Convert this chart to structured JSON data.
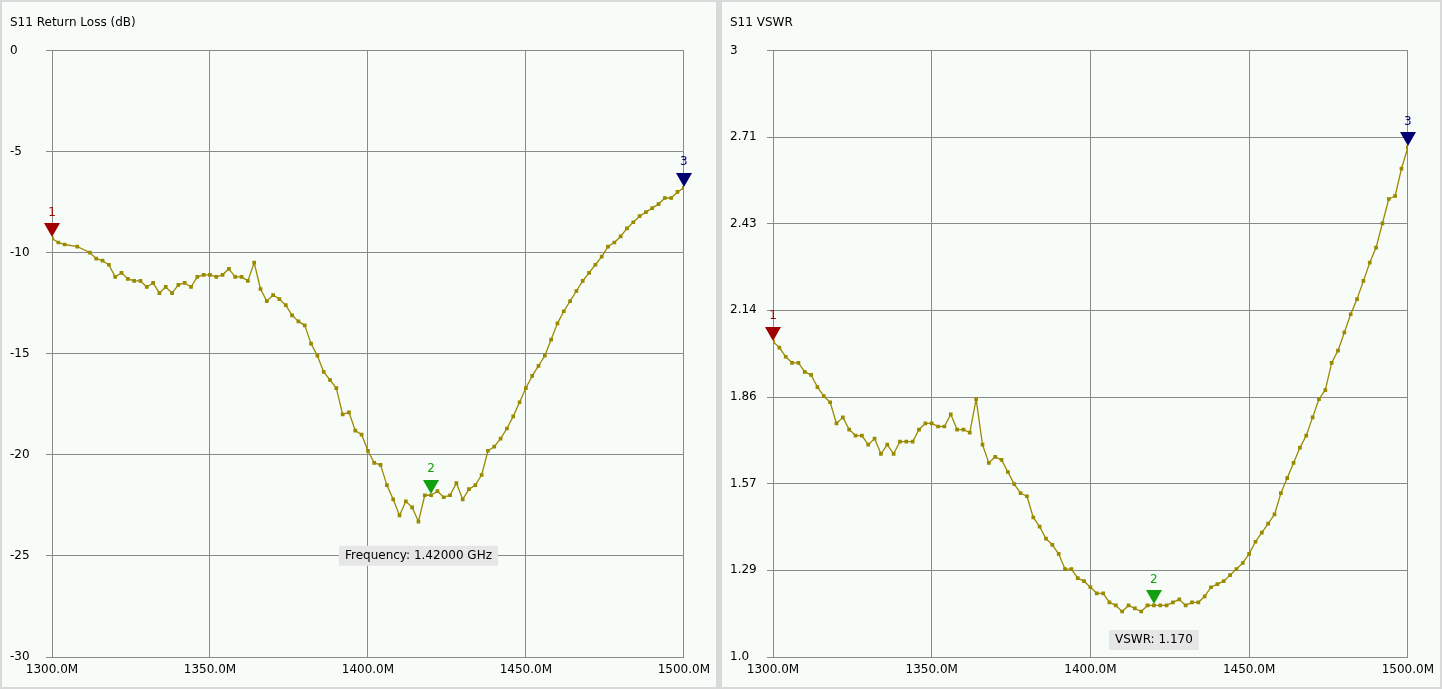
{
  "chart_data": [
    {
      "type": "line",
      "title": "S11 Return Loss (dB)",
      "x": [
        1300,
        1302,
        1304,
        1308,
        1312,
        1314,
        1316,
        1318,
        1320,
        1322,
        1324,
        1326,
        1328,
        1330,
        1332,
        1334,
        1336,
        1338,
        1340,
        1342,
        1344,
        1346,
        1348,
        1350,
        1352,
        1354,
        1356,
        1358,
        1360,
        1362,
        1364,
        1366,
        1368,
        1370,
        1372,
        1374,
        1376,
        1378,
        1380,
        1382,
        1384,
        1386,
        1388,
        1390,
        1392,
        1394,
        1396,
        1398,
        1400,
        1402,
        1404,
        1406,
        1408,
        1410,
        1412,
        1414,
        1416,
        1418,
        1420,
        1422,
        1424,
        1426,
        1428,
        1430,
        1432,
        1434,
        1436,
        1438,
        1440,
        1442,
        1444,
        1446,
        1448,
        1450,
        1452,
        1454,
        1456,
        1458,
        1460,
        1462,
        1464,
        1466,
        1468,
        1470,
        1472,
        1474,
        1476,
        1478,
        1480,
        1482,
        1484,
        1486,
        1488,
        1490,
        1492,
        1494,
        1496,
        1498,
        1500
      ],
      "series": [
        {
          "color": "#9a8a00",
          "values": [
            -9.3,
            -9.5,
            -9.6,
            -9.7,
            -10.0,
            -10.3,
            -10.4,
            -10.6,
            -11.2,
            -11.0,
            -11.3,
            -11.4,
            -11.4,
            -11.7,
            -11.5,
            -12.0,
            -11.7,
            -12.0,
            -11.6,
            -11.5,
            -11.7,
            -11.2,
            -11.1,
            -11.1,
            -11.2,
            -11.1,
            -10.8,
            -11.2,
            -11.2,
            -11.4,
            -10.5,
            -11.8,
            -12.4,
            -12.1,
            -12.3,
            -12.6,
            -13.1,
            -13.4,
            -13.6,
            -14.5,
            -15.1,
            -15.9,
            -16.3,
            -16.7,
            -18.0,
            -17.9,
            -18.8,
            -19.0,
            -19.8,
            -20.4,
            -20.5,
            -21.5,
            -22.2,
            -23.0,
            -22.3,
            -22.6,
            -23.3,
            -22.0,
            -22.0,
            -21.8,
            -22.1,
            -22.0,
            -21.4,
            -22.2,
            -21.7,
            -21.5,
            -21.0,
            -19.8,
            -19.6,
            -19.2,
            -18.7,
            -18.1,
            -17.4,
            -16.7,
            -16.1,
            -15.6,
            -15.1,
            -14.3,
            -13.5,
            -12.9,
            -12.4,
            -11.9,
            -11.4,
            -11.0,
            -10.6,
            -10.2,
            -9.7,
            -9.5,
            -9.2,
            -8.8,
            -8.5,
            -8.2,
            -8.0,
            -7.8,
            -7.6,
            -7.3,
            -7.3,
            -7.0,
            -6.8
          ]
        }
      ],
      "xlim": [
        1300,
        1500
      ],
      "xticks": [
        {
          "value": 1300,
          "label": "1300.0M"
        },
        {
          "value": 1350,
          "label": "1350.0M"
        },
        {
          "value": 1400,
          "label": "1400.0M"
        },
        {
          "value": 1450,
          "label": "1450.0M"
        },
        {
          "value": 1500,
          "label": "1500.0M"
        }
      ],
      "ylim": [
        -30,
        0
      ],
      "yticks": [
        -30,
        -25,
        -20,
        -15,
        -10,
        -5,
        0
      ],
      "grid": true,
      "marker": "square",
      "line_style": "solid",
      "annotations": [
        {
          "text": "1",
          "x": 1300,
          "y": -9.3
        },
        {
          "text": "2",
          "x": 1420,
          "y": -22.0
        },
        {
          "text": "3",
          "x": 1500,
          "y": -6.8
        },
        "Frequency: 1.42000 GHz"
      ]
    },
    {
      "type": "line",
      "title": "S11 VSWR",
      "x": [
        1300,
        1302,
        1304,
        1306,
        1308,
        1310,
        1312,
        1314,
        1316,
        1318,
        1320,
        1322,
        1324,
        1326,
        1328,
        1330,
        1332,
        1334,
        1336,
        1338,
        1340,
        1342,
        1344,
        1346,
        1348,
        1350,
        1352,
        1354,
        1356,
        1358,
        1360,
        1362,
        1364,
        1366,
        1368,
        1370,
        1372,
        1374,
        1376,
        1378,
        1380,
        1382,
        1384,
        1386,
        1388,
        1390,
        1392,
        1394,
        1396,
        1398,
        1400,
        1402,
        1404,
        1406,
        1408,
        1410,
        1412,
        1414,
        1416,
        1418,
        1420,
        1422,
        1424,
        1426,
        1428,
        1430,
        1432,
        1434,
        1436,
        1438,
        1440,
        1442,
        1444,
        1446,
        1448,
        1450,
        1452,
        1454,
        1456,
        1458,
        1460,
        1462,
        1464,
        1466,
        1468,
        1470,
        1472,
        1474,
        1476,
        1478,
        1480,
        1482,
        1484,
        1486,
        1488,
        1490,
        1492,
        1494,
        1496,
        1498,
        1500
      ],
      "series": [
        {
          "color": "#9a8a00",
          "values": [
            2.04,
            2.02,
            1.99,
            1.97,
            1.97,
            1.94,
            1.93,
            1.89,
            1.86,
            1.84,
            1.77,
            1.79,
            1.75,
            1.73,
            1.73,
            1.7,
            1.72,
            1.67,
            1.7,
            1.67,
            1.71,
            1.71,
            1.71,
            1.75,
            1.77,
            1.77,
            1.76,
            1.76,
            1.8,
            1.75,
            1.75,
            1.74,
            1.85,
            1.7,
            1.64,
            1.66,
            1.65,
            1.61,
            1.57,
            1.54,
            1.53,
            1.46,
            1.43,
            1.39,
            1.37,
            1.34,
            1.29,
            1.29,
            1.26,
            1.25,
            1.23,
            1.21,
            1.21,
            1.18,
            1.17,
            1.15,
            1.17,
            1.16,
            1.15,
            1.17,
            1.17,
            1.17,
            1.17,
            1.18,
            1.19,
            1.17,
            1.18,
            1.18,
            1.2,
            1.23,
            1.24,
            1.25,
            1.27,
            1.29,
            1.31,
            1.34,
            1.38,
            1.41,
            1.44,
            1.47,
            1.54,
            1.59,
            1.64,
            1.69,
            1.73,
            1.79,
            1.85,
            1.88,
            1.97,
            2.01,
            2.07,
            2.13,
            2.18,
            2.24,
            2.3,
            2.35,
            2.43,
            2.51,
            2.52,
            2.61,
            2.68
          ]
        }
      ],
      "xlim": [
        1300,
        1500
      ],
      "xticks": [
        {
          "value": 1300,
          "label": "1300.0M"
        },
        {
          "value": 1350,
          "label": "1350.0M"
        },
        {
          "value": 1400,
          "label": "1400.0M"
        },
        {
          "value": 1450,
          "label": "1450.0M"
        },
        {
          "value": 1500,
          "label": "1500.0M"
        }
      ],
      "ylim": [
        1,
        3
      ],
      "yticks": [
        {
          "value": 1,
          "label": "1.0"
        },
        {
          "value": 1.2857,
          "label": "1.29"
        },
        {
          "value": 1.5714,
          "label": "1.57"
        },
        {
          "value": 1.8571,
          "label": "1.86"
        },
        {
          "value": 2.1429,
          "label": "2.14"
        },
        {
          "value": 2.4286,
          "label": "2.43"
        },
        {
          "value": 2.7143,
          "label": "2.71"
        },
        3
      ],
      "grid": true,
      "marker": "square",
      "line_style": "solid",
      "annotations": [
        {
          "text": "1",
          "x": 1300,
          "y": 2.04
        },
        {
          "text": "2",
          "x": 1420,
          "y": 1.17
        },
        {
          "text": "3",
          "x": 1500,
          "y": 2.68
        },
        "VSWR: 1.170"
      ]
    }
  ]
}
